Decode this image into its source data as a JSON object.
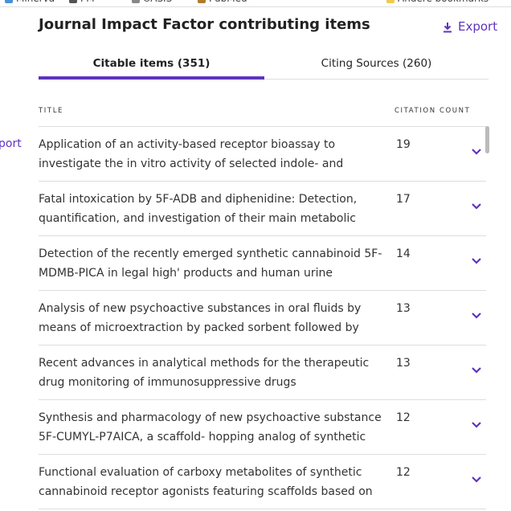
{
  "bookmarks": [
    "Minerva",
    "PM",
    "OASIS",
    "PubMed",
    "Andere bookmarks"
  ],
  "left_fragment": "port",
  "header": {
    "title": "Journal Impact Factor contributing items",
    "export": "Export"
  },
  "tabs": [
    "Citable items (351)",
    "Citing Sources (260)"
  ],
  "table": {
    "columns": [
      "TITLE",
      "CITATION COUNT"
    ],
    "rows": [
      {
        "title_lines": [
          "Application of an activity-based receptor bioassay to",
          "investigate the in vitro activity of selected indole- and"
        ],
        "count": 19
      },
      {
        "title_lines": [
          "Fatal intoxication by 5F-ADB and diphenidine: Detection,",
          "quantification, and investigation of their main metabolic"
        ],
        "count": 17
      },
      {
        "title_lines": [
          "Detection of the recently emerged synthetic cannabinoid 5F-",
          "MDMB-PICA in legal high' products and human urine"
        ],
        "count": 14
      },
      {
        "title_lines": [
          "Analysis of new psychoactive substances in oral fluids by",
          "means of microextraction by packed sorbent followed by"
        ],
        "count": 13
      },
      {
        "title_lines": [
          "Recent advances in analytical methods for the therapeutic",
          "drug monitoring of immunosuppressive drugs"
        ],
        "count": 13
      },
      {
        "title_lines": [
          "Synthesis and pharmacology of new psychoactive substance",
          "5F-CUMYL-P7AICA, a scaffold- hopping analog of synthetic"
        ],
        "count": 12
      },
      {
        "title_lines": [
          "Functional evaluation of carboxy metabolites of synthetic",
          "cannabinoid receptor agonists featuring scaffolds based on"
        ],
        "count": 12
      }
    ]
  }
}
